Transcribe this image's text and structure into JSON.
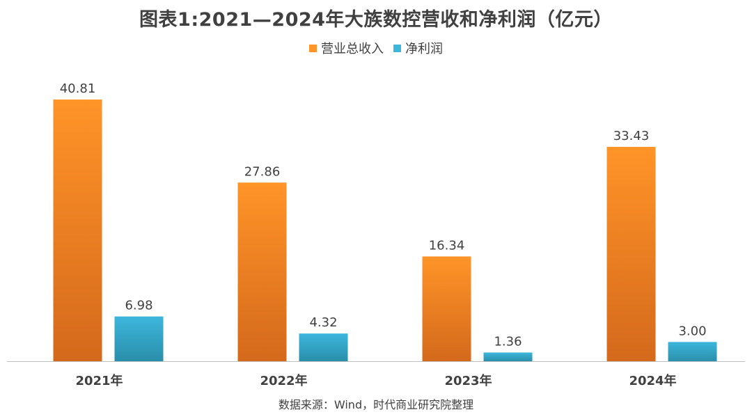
{
  "colors": {
    "revenue_top": "#FF9428",
    "revenue_bottom": "#D4691C",
    "profit_top": "#3DB6DC",
    "profit_bottom": "#2A8FAA",
    "text": "#404040",
    "axis": "#BFBFBF"
  },
  "chart_data": {
    "type": "bar",
    "title": "图表1:2021—2024年大族数控营收和净利润（亿元）",
    "categories": [
      "2021年",
      "2022年",
      "2023年",
      "2024年"
    ],
    "series": [
      {
        "name": "营业总收入",
        "values": [
          40.81,
          27.86,
          16.34,
          33.43
        ],
        "value_labels": [
          "40.81",
          "27.86",
          "16.34",
          "33.43"
        ]
      },
      {
        "name": "净利润",
        "values": [
          6.98,
          4.32,
          1.36,
          3.0
        ],
        "value_labels": [
          "6.98",
          "4.32",
          "1.36",
          "3.00"
        ]
      }
    ],
    "xlabel": "",
    "ylabel": "",
    "ylim": [
      0,
      40.81
    ],
    "grid": false,
    "legend": "top-center",
    "source": "数据来源：Wind，时代商业研究院整理"
  }
}
